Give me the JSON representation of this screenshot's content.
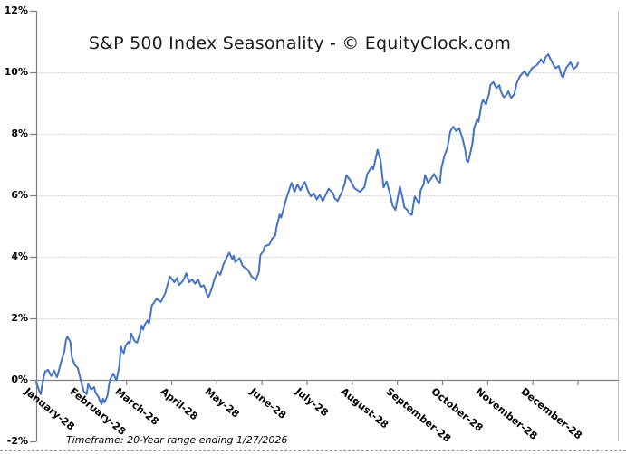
{
  "title": "S&P 500 Index Seasonality - © EquityClock.com",
  "footer": "Timeframe: 20-Year range ending 1/27/2026",
  "colors": {
    "line": "#4472C4",
    "gridline": "#b3b3b3",
    "axis": "#808080",
    "plot_border": "#c0c0c0",
    "text": "#000000",
    "title_text": "#1a1a1a"
  },
  "chart_data": {
    "type": "line",
    "title": "S&P 500 Index Seasonality - © EquityClock.com",
    "xlabel": "",
    "ylabel": "",
    "legend": "none",
    "grid": "horizontal dotted at 2% steps, solid axis at 0%",
    "ylim": [
      -2,
      12
    ],
    "y_tick_values": [
      12,
      10,
      8,
      6,
      4,
      2,
      0,
      -2
    ],
    "y_tick_labels": [
      "12%",
      "10%",
      "8%",
      "6%",
      "4%",
      "2%",
      "0%",
      "-2%"
    ],
    "x_tick_labels": [
      "January-28",
      "February-28",
      "March-28",
      "April-28",
      "May-28",
      "June-28",
      "July-28",
      "August-28",
      "September-28",
      "October-28",
      "November-28",
      "December-28"
    ],
    "x_days_span": 365,
    "timeframe_note": "Timeframe: 20-Year range ending 1/27/2026",
    "series": [
      {
        "points": [
          [
            0,
            -0.05
          ],
          [
            2,
            -0.35
          ],
          [
            3,
            -0.45
          ],
          [
            5,
            0.1
          ],
          [
            6,
            0.28
          ],
          [
            8,
            0.34
          ],
          [
            10,
            0.14
          ],
          [
            12,
            0.32
          ],
          [
            14,
            0.1
          ],
          [
            16,
            0.45
          ],
          [
            17,
            0.64
          ],
          [
            19,
            0.95
          ],
          [
            20,
            1.3
          ],
          [
            21,
            1.42
          ],
          [
            23,
            1.25
          ],
          [
            24,
            0.75
          ],
          [
            26,
            0.5
          ],
          [
            28,
            0.4
          ],
          [
            30,
            0
          ],
          [
            32,
            -0.35
          ],
          [
            34,
            -0.45
          ],
          [
            35,
            -0.12
          ],
          [
            37,
            -0.3
          ],
          [
            39,
            -0.22
          ],
          [
            40,
            -0.4
          ],
          [
            42,
            -0.55
          ],
          [
            43,
            -0.68
          ],
          [
            44,
            -0.78
          ],
          [
            45,
            -0.6
          ],
          [
            46,
            -0.72
          ],
          [
            48,
            -0.5
          ],
          [
            49,
            -0.15
          ],
          [
            50,
            0.05
          ],
          [
            52,
            0.22
          ],
          [
            53,
            0.1
          ],
          [
            54,
            0
          ],
          [
            56,
            0.45
          ],
          [
            57,
            1.1
          ],
          [
            58,
            0.95
          ],
          [
            59,
            0.88
          ],
          [
            60,
            1.1
          ],
          [
            62,
            1.25
          ],
          [
            63,
            1.2
          ],
          [
            64,
            1.52
          ],
          [
            66,
            1.3
          ],
          [
            67,
            1.25
          ],
          [
            68,
            1.23
          ],
          [
            70,
            1.55
          ],
          [
            71,
            1.78
          ],
          [
            72,
            1.65
          ],
          [
            73,
            1.8
          ],
          [
            75,
            1.95
          ],
          [
            76,
            1.85
          ],
          [
            78,
            2.45
          ],
          [
            79,
            2.5
          ],
          [
            81,
            2.65
          ],
          [
            84,
            2.55
          ],
          [
            87,
            2.84
          ],
          [
            90,
            3.38
          ],
          [
            93,
            3.19
          ],
          [
            95,
            3.33
          ],
          [
            96,
            3.09
          ],
          [
            99,
            3.24
          ],
          [
            101,
            3.48
          ],
          [
            103,
            3.19
          ],
          [
            105,
            3.28
          ],
          [
            107,
            3.14
          ],
          [
            109,
            3.28
          ],
          [
            111,
            3.04
          ],
          [
            113,
            3.09
          ],
          [
            115,
            2.79
          ],
          [
            116,
            2.7
          ],
          [
            118,
            2.94
          ],
          [
            120,
            3.28
          ],
          [
            122,
            3.53
          ],
          [
            124,
            3.43
          ],
          [
            126,
            3.75
          ],
          [
            128,
            3.95
          ],
          [
            130,
            4.15
          ],
          [
            132,
            3.95
          ],
          [
            133,
            4.05
          ],
          [
            134,
            3.85
          ],
          [
            136,
            3.92
          ],
          [
            137,
            3.97
          ],
          [
            139,
            3.73
          ],
          [
            140,
            3.68
          ],
          [
            142,
            3.62
          ],
          [
            143,
            3.56
          ],
          [
            145,
            3.38
          ],
          [
            148,
            3.26
          ],
          [
            150,
            3.53
          ],
          [
            151,
            4.07
          ],
          [
            153,
            4.21
          ],
          [
            154,
            4.36
          ],
          [
            157,
            4.41
          ],
          [
            159,
            4.61
          ],
          [
            161,
            4.71
          ],
          [
            162,
            5.0
          ],
          [
            163,
            5.2
          ],
          [
            164,
            5.39
          ],
          [
            165,
            5.29
          ],
          [
            167,
            5.64
          ],
          [
            168,
            5.83
          ],
          [
            170,
            6.13
          ],
          [
            172,
            6.42
          ],
          [
            174,
            6.13
          ],
          [
            176,
            6.37
          ],
          [
            178,
            6.18
          ],
          [
            180,
            6.37
          ],
          [
            181,
            6.45
          ],
          [
            183,
            6.18
          ],
          [
            185,
            5.98
          ],
          [
            187,
            6.08
          ],
          [
            189,
            5.88
          ],
          [
            191,
            6.03
          ],
          [
            193,
            5.83
          ],
          [
            195,
            6.03
          ],
          [
            197,
            6.23
          ],
          [
            200,
            6.08
          ],
          [
            201,
            5.93
          ],
          [
            203,
            5.83
          ],
          [
            206,
            6.13
          ],
          [
            208,
            6.42
          ],
          [
            209,
            6.67
          ],
          [
            212,
            6.47
          ],
          [
            214,
            6.27
          ],
          [
            215,
            6.23
          ],
          [
            218,
            6.13
          ],
          [
            221,
            6.27
          ],
          [
            223,
            6.71
          ],
          [
            225,
            6.86
          ],
          [
            226,
            6.96
          ],
          [
            227,
            6.86
          ],
          [
            228,
            7.06
          ],
          [
            230,
            7.5
          ],
          [
            232,
            7.16
          ],
          [
            234,
            6.27
          ],
          [
            236,
            6.47
          ],
          [
            238,
            6.13
          ],
          [
            240,
            5.69
          ],
          [
            242,
            5.54
          ],
          [
            245,
            6.3
          ],
          [
            247,
            5.88
          ],
          [
            248,
            5.63
          ],
          [
            250,
            5.54
          ],
          [
            251,
            5.44
          ],
          [
            253,
            5.38
          ],
          [
            255,
            5.98
          ],
          [
            258,
            5.74
          ],
          [
            259,
            6.18
          ],
          [
            261,
            6.37
          ],
          [
            262,
            6.67
          ],
          [
            264,
            6.42
          ],
          [
            267,
            6.62
          ],
          [
            268,
            6.71
          ],
          [
            270,
            6.52
          ],
          [
            272,
            6.42
          ],
          [
            273,
            6.91
          ],
          [
            275,
            7.3
          ],
          [
            277,
            7.55
          ],
          [
            279,
            8.1
          ],
          [
            281,
            8.25
          ],
          [
            283,
            8.1
          ],
          [
            285,
            8.2
          ],
          [
            287,
            7.9
          ],
          [
            289,
            7.5
          ],
          [
            290,
            7.15
          ],
          [
            291,
            7.1
          ],
          [
            293,
            7.5
          ],
          [
            294,
            7.75
          ],
          [
            295,
            8.2
          ],
          [
            297,
            8.48
          ],
          [
            298,
            8.4
          ],
          [
            300,
            8.97
          ],
          [
            301,
            9.12
          ],
          [
            303,
            8.97
          ],
          [
            305,
            9.3
          ],
          [
            306,
            9.6
          ],
          [
            308,
            9.7
          ],
          [
            310,
            9.5
          ],
          [
            312,
            9.6
          ],
          [
            313,
            9.4
          ],
          [
            315,
            9.2
          ],
          [
            317,
            9.3
          ],
          [
            318,
            9.4
          ],
          [
            320,
            9.18
          ],
          [
            322,
            9.3
          ],
          [
            324,
            9.7
          ],
          [
            326,
            9.9
          ],
          [
            329,
            10.05
          ],
          [
            331,
            9.9
          ],
          [
            334,
            10.15
          ],
          [
            337,
            10.24
          ],
          [
            339,
            10.35
          ],
          [
            340,
            10.44
          ],
          [
            342,
            10.3
          ],
          [
            343,
            10.5
          ],
          [
            345,
            10.6
          ],
          [
            347,
            10.4
          ],
          [
            348,
            10.3
          ],
          [
            350,
            10.15
          ],
          [
            352,
            10.22
          ],
          [
            354,
            9.9
          ],
          [
            355,
            9.85
          ],
          [
            357,
            10.15
          ],
          [
            360,
            10.34
          ],
          [
            362,
            10.13
          ],
          [
            364,
            10.2
          ],
          [
            365,
            10.32
          ]
        ]
      }
    ]
  }
}
